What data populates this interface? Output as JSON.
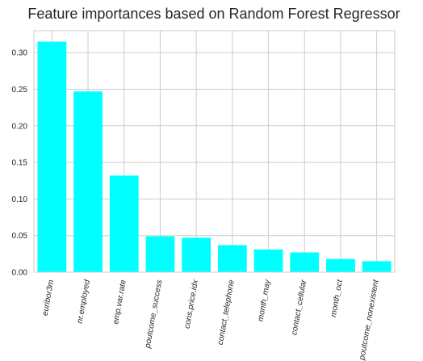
{
  "chart_data": {
    "type": "bar",
    "title": "Feature importances based on Random Forest Regressor",
    "xlabel": "",
    "ylabel": "",
    "categories": [
      "euribor3m",
      "nr.employed",
      "emp.var.rate",
      "poutcome_success",
      "cons.price.idx",
      "contact_telephone",
      "month_may",
      "contact_cellular",
      "month_oct",
      "poutcome_nonexistent"
    ],
    "values": [
      0.315,
      0.247,
      0.132,
      0.049,
      0.047,
      0.037,
      0.031,
      0.027,
      0.018,
      0.015
    ],
    "ylim": [
      0,
      0.33
    ],
    "yticks": [
      "0.00",
      "0.05",
      "0.10",
      "0.15",
      "0.20",
      "0.25",
      "0.30"
    ],
    "bar_color": "#00ffff",
    "grid": true,
    "legend": "none"
  }
}
